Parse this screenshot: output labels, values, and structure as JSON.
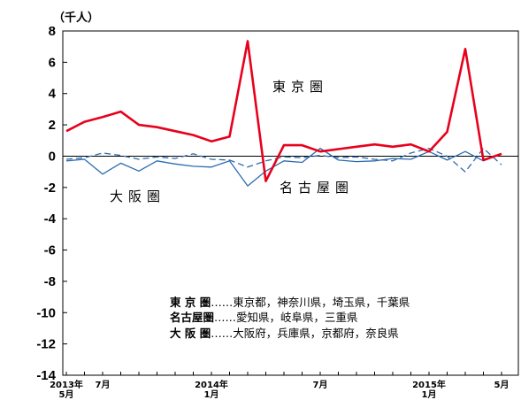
{
  "chart_data": {
    "type": "line",
    "ylabel": "（千人）",
    "ylim": [
      -14,
      8
    ],
    "yticks": [
      8,
      6,
      4,
      2,
      0,
      -2,
      -4,
      -6,
      -8,
      -10,
      -12,
      -14
    ],
    "x": [
      "2013-05",
      "2013-06",
      "2013-07",
      "2013-08",
      "2013-09",
      "2013-10",
      "2013-11",
      "2013-12",
      "2014-01",
      "2014-02",
      "2014-03",
      "2014-04",
      "2014-05",
      "2014-06",
      "2014-07",
      "2014-08",
      "2014-09",
      "2014-10",
      "2014-11",
      "2014-12",
      "2015-01",
      "2015-02",
      "2015-03",
      "2015-04",
      "2015-05"
    ],
    "xticks": [
      {
        "x": "2013-05",
        "lines": [
          "2013年",
          "5月"
        ]
      },
      {
        "x": "2013-07",
        "lines": [
          "7月"
        ]
      },
      {
        "x": "2014-01",
        "lines": [
          "2014年",
          "1月"
        ]
      },
      {
        "x": "2014-07",
        "lines": [
          "7月"
        ]
      },
      {
        "x": "2015-01",
        "lines": [
          "2015年",
          "1月"
        ]
      },
      {
        "x": "2015-05",
        "lines": [
          "5月"
        ]
      }
    ],
    "series": [
      {
        "name": "東京圏",
        "color": "#e8001c",
        "style": "solid",
        "values": [
          1.6,
          2.2,
          2.5,
          2.85,
          2.0,
          1.85,
          1.6,
          1.35,
          0.95,
          1.25,
          7.35,
          -1.6,
          0.7,
          0.7,
          0.3,
          0.45,
          0.6,
          0.75,
          0.6,
          0.75,
          0.3,
          1.55,
          6.85,
          -0.25,
          0.15
        ]
      },
      {
        "name": "名古屋圏",
        "color": "#2b6cb0",
        "style": "dashed",
        "values": [
          -0.2,
          -0.1,
          0.2,
          0.05,
          -0.2,
          -0.05,
          -0.15,
          0.15,
          -0.2,
          -0.25,
          -0.7,
          -0.3,
          -0.05,
          -0.1,
          0.05,
          -0.1,
          -0.05,
          -0.2,
          -0.3,
          0.2,
          0.5,
          0.0,
          -1.0,
          0.5,
          -0.55
        ]
      },
      {
        "name": "大阪圏",
        "color": "#2b6cb0",
        "style": "solid",
        "values": [
          -0.3,
          -0.2,
          -1.15,
          -0.45,
          -0.95,
          -0.3,
          -0.5,
          -0.65,
          -0.7,
          -0.3,
          -1.9,
          -0.95,
          -0.3,
          -0.4,
          0.5,
          -0.25,
          -0.35,
          -0.3,
          -0.15,
          -0.2,
          0.3,
          -0.25,
          0.3,
          -0.3,
          0.15
        ]
      }
    ],
    "annotations": [
      {
        "text": "東京圏",
        "series": "東京圏"
      },
      {
        "text": "名古屋圏",
        "series": "名古屋圏"
      },
      {
        "text": "大阪圏",
        "series": "大阪圏"
      }
    ],
    "legend": {
      "placement": "bottom-right",
      "entries": [
        {
          "key": "東 京 圏",
          "dots": "……",
          "text": "東京都，神奈川県，埼玉県，千葉県"
        },
        {
          "key": "名古屋圏",
          "dots": "……",
          "text": "愛知県，岐阜県，三重県"
        },
        {
          "key": "大 阪 圏",
          "dots": "……",
          "text": "大阪府，兵庫県，京都府，奈良県"
        }
      ]
    },
    "grid": false,
    "zero_line": true
  }
}
